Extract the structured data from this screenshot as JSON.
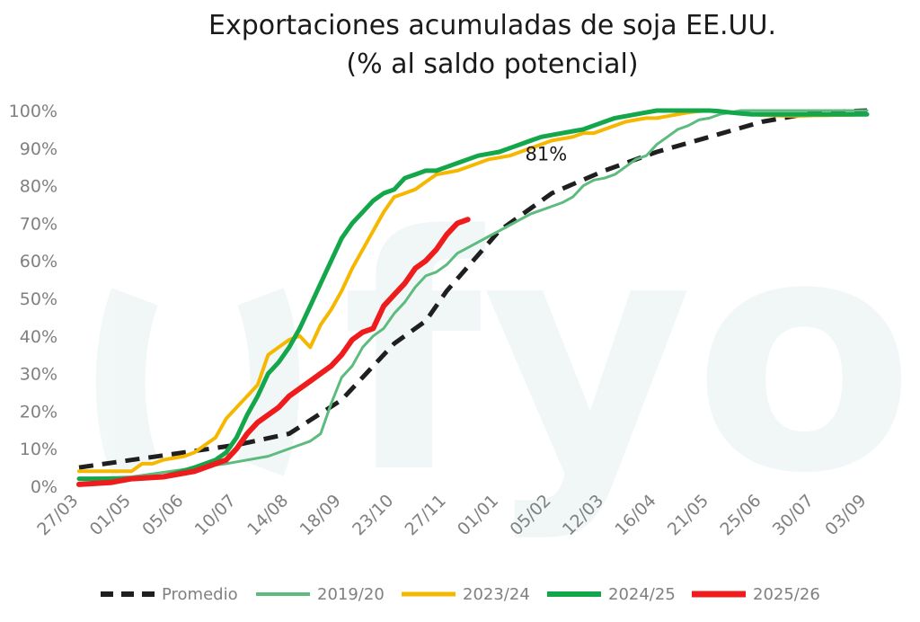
{
  "chart_data": {
    "type": "line",
    "title": "Exportaciones acumuladas de soja EE.UU.",
    "subtitle": "(% al saldo potencial)",
    "watermark": "fyo",
    "x_tick_labels": [
      "27/03",
      "01/05",
      "05/06",
      "10/07",
      "14/08",
      "18/09",
      "23/10",
      "27/11",
      "01/01",
      "05/02",
      "12/03",
      "16/04",
      "21/05",
      "25/06",
      "30/07",
      "03/09"
    ],
    "x_range": [
      0,
      75
    ],
    "ylim": [
      0,
      100
    ],
    "y_ticks": [
      0,
      10,
      20,
      30,
      40,
      50,
      60,
      70,
      80,
      90,
      100
    ],
    "y_tick_format": "{v}%",
    "grid": false,
    "legend_position": "bottom",
    "annotation": {
      "text": "81%",
      "x": 44,
      "y": 81
    },
    "series": [
      {
        "name": "Promedio",
        "color": "#1f1f1f",
        "dashed": true,
        "x": [
          0,
          5,
          10,
          15,
          20,
          25,
          28,
          30,
          33,
          35,
          40,
          45,
          50,
          55,
          60,
          65,
          70,
          75
        ],
        "values": [
          5,
          7,
          9,
          11,
          14,
          23,
          32,
          38,
          44,
          52,
          68,
          78,
          84,
          89,
          93,
          97,
          99.5,
          100
        ]
      },
      {
        "name": "2019/20",
        "color": "#5dbb7e",
        "dashed": false,
        "x": [
          0,
          5,
          10,
          14,
          18,
          21,
          22,
          23,
          24,
          25,
          26,
          27,
          28,
          29,
          30,
          31,
          32,
          33,
          34,
          35,
          36,
          37,
          38,
          39,
          40,
          41,
          42,
          43,
          44,
          45,
          46,
          47,
          48,
          49,
          50,
          51,
          52,
          53,
          54,
          55,
          56,
          57,
          58,
          59,
          60,
          61,
          62,
          63,
          64,
          65,
          66,
          67,
          68,
          69,
          70,
          71,
          72,
          73,
          74,
          75
        ],
        "values": [
          2,
          2.5,
          4.5,
          6,
          8,
          11,
          12,
          14,
          22,
          29,
          32,
          37,
          40,
          42,
          46,
          49,
          53,
          56,
          57,
          59,
          62,
          63.5,
          65,
          66.5,
          68,
          69.5,
          71,
          72.5,
          73.5,
          74.5,
          75.5,
          77,
          80,
          81.5,
          82,
          83,
          85,
          87,
          88,
          91,
          93,
          95,
          96,
          97.5,
          98,
          99,
          99.5,
          100,
          100,
          100,
          100,
          100,
          100,
          100,
          100,
          100,
          100,
          100,
          100,
          100
        ]
      },
      {
        "name": "2023/24",
        "color": "#f5b700",
        "dashed": false,
        "x": [
          0,
          4,
          5,
          6,
          7,
          8,
          9,
          10,
          11,
          12,
          13,
          14,
          15,
          16,
          17,
          18,
          19,
          20,
          21,
          22,
          23,
          24,
          25,
          26,
          27,
          28,
          29,
          30,
          31,
          32,
          33,
          34,
          35,
          36,
          37,
          38,
          39,
          40,
          41,
          42,
          43,
          44,
          45,
          46,
          47,
          48,
          49,
          50,
          51,
          52,
          53,
          54,
          55,
          56,
          57,
          58,
          59,
          60,
          61,
          62,
          63,
          64,
          65,
          66,
          67,
          68,
          69,
          70,
          71,
          72,
          73,
          74,
          75
        ],
        "values": [
          4,
          4,
          4,
          6,
          6,
          7,
          7.5,
          8,
          9,
          11,
          13,
          18,
          21,
          24,
          27,
          35,
          37,
          39,
          40,
          37,
          43,
          47,
          52,
          58,
          63,
          68,
          73,
          77,
          78,
          79,
          81,
          83,
          83.5,
          84,
          85,
          86,
          87,
          87.5,
          88,
          89,
          90,
          91,
          92,
          92.5,
          93,
          94,
          94,
          95,
          96,
          97,
          97.5,
          98,
          98,
          98.5,
          99,
          99.5,
          99.8,
          100,
          99.8,
          99.5,
          99.2,
          99,
          98.8,
          98.7,
          98.6,
          98.6,
          98.6,
          98.7,
          98.7,
          98.8,
          98.8,
          98.9,
          99
        ]
      },
      {
        "name": "2024/25",
        "color": "#14a64a",
        "dashed": false,
        "x": [
          0,
          4,
          8,
          11,
          13,
          14,
          15,
          16,
          17,
          18,
          19,
          20,
          21,
          22,
          23,
          24,
          25,
          26,
          27,
          28,
          29,
          30,
          31,
          32,
          33,
          34,
          35,
          36,
          37,
          38,
          39,
          40,
          41,
          42,
          43,
          44,
          45,
          46,
          47,
          48,
          49,
          50,
          51,
          52,
          53,
          54,
          55,
          56,
          57,
          58,
          59,
          60,
          61,
          62,
          63,
          64,
          65,
          66,
          67,
          68,
          69,
          70,
          71,
          72,
          73,
          74,
          75
        ],
        "values": [
          2,
          2,
          2.5,
          5,
          7,
          9,
          13,
          19,
          24,
          30,
          33,
          37,
          42,
          48,
          54,
          60,
          66,
          70,
          73,
          76,
          78,
          79,
          82,
          83,
          84,
          84,
          85,
          86,
          87,
          88,
          88.5,
          89,
          90,
          91,
          92,
          93,
          93.5,
          94,
          94.5,
          95,
          96,
          97,
          98,
          98.5,
          99,
          99.5,
          100,
          100,
          100,
          100,
          100,
          100,
          99.8,
          99.5,
          99.2,
          99,
          99,
          99,
          99,
          99,
          99,
          99,
          99,
          99,
          99,
          99,
          99
        ]
      },
      {
        "name": "2025/26",
        "color": "#ee1c1c",
        "dashed": false,
        "x": [
          0,
          3,
          5,
          8,
          11,
          14,
          15,
          16,
          17,
          18,
          19,
          20,
          21,
          22,
          23,
          24,
          25,
          26,
          27,
          28,
          29,
          30,
          31,
          32,
          33,
          34,
          35,
          36,
          37
        ],
        "values": [
          0.5,
          1,
          2,
          2.5,
          4,
          7,
          10,
          14,
          17,
          19,
          21,
          24,
          26,
          28,
          30,
          32,
          35,
          39,
          41,
          42,
          48,
          51,
          54,
          58,
          60,
          63,
          67,
          70,
          71
        ]
      }
    ]
  }
}
